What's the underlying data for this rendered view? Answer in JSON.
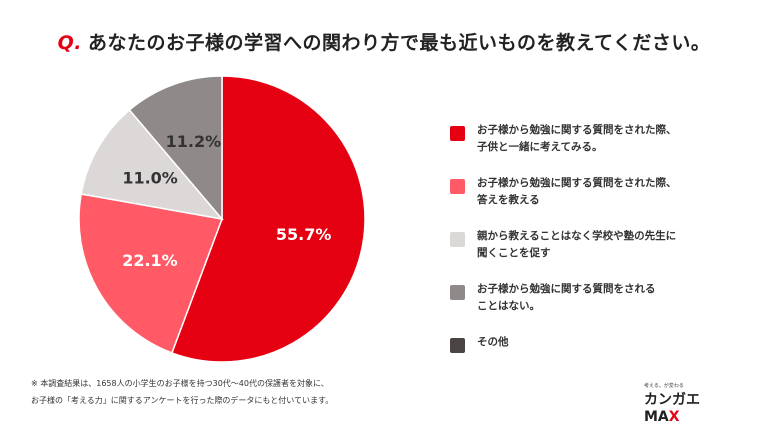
{
  "title": {
    "prefix": "Q.",
    "text": "あなたのお子様の学習への関わり方で最も近いものを教えてください。"
  },
  "chart_data": {
    "type": "pie",
    "title": "あなたのお子様の学習への関わり方で最も近いものを教えてください。",
    "start": "top",
    "direction": "clockwise",
    "legend_position": "right",
    "slices": [
      {
        "label": "お子様から勉強に関する質問をされた際、\n子供と一緒に考えてみる。",
        "value": 55.7,
        "display": "55.7%",
        "color": "#e50012"
      },
      {
        "label": "お子様から勉強に関する質問をされた際、\n答えを教える",
        "value": 22.1,
        "display": "22.1%",
        "color": "#ff5a66"
      },
      {
        "label": "親から教えることはなく学校や塾の先生に\n聞くことを促す",
        "value": 11.0,
        "display": "11.0%",
        "color": "#dcd8d8"
      },
      {
        "label": "お子様から勉強に関する質問をされる\nことはない。",
        "value": 11.2,
        "display": "11.2%",
        "color": "#8f8989"
      },
      {
        "label": "その他",
        "value": 0,
        "display": "",
        "color": "#4a4444"
      }
    ]
  },
  "footnote": {
    "line1": "※ 本調査結果は、1658人の小学生のお子様を持つ30代～40代の保護者を対象に、",
    "line2": "お子様の「考える力」に関するアンケートを行った際のデータにもと付いています。"
  },
  "logo": {
    "tagline": "考える。が変わる",
    "name": "カンガエMA",
    "x": "X"
  }
}
